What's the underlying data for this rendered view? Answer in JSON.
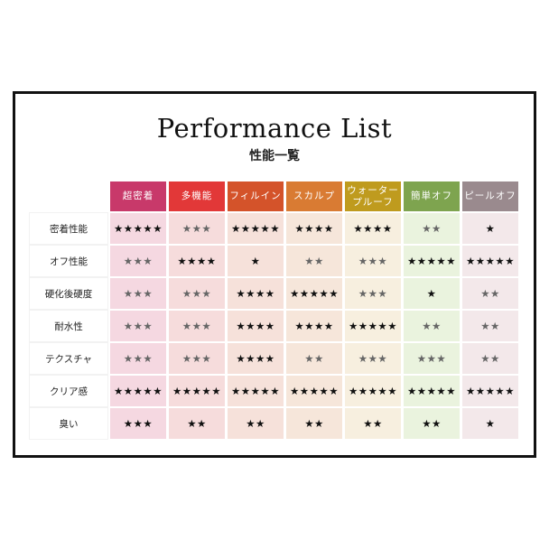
{
  "title": "Performance List",
  "subtitle": "性能一覧",
  "star_glyph": "★",
  "columns": [
    {
      "label": "超密着",
      "color": "#c8396a",
      "bg": "#f5d8e1"
    },
    {
      "label": "多機能",
      "color": "#e23838",
      "bg": "#f6dcdc"
    },
    {
      "label": "フィルイン",
      "color": "#d4532a",
      "bg": "#f6e1da"
    },
    {
      "label": "スカルプ",
      "color": "#d97b33",
      "bg": "#f6e6da"
    },
    {
      "label": "ウォーター\nプルーフ",
      "color": "#bf9b1e",
      "bg": "#f7efdf"
    },
    {
      "label": "簡単オフ",
      "color": "#7ea44f",
      "bg": "#eaf3de"
    },
    {
      "label": "ピールオフ",
      "color": "#9a8a8e",
      "bg": "#f3e8ea"
    }
  ],
  "rows": [
    {
      "label": "密着性能",
      "cells": [
        {
          "stars": 5,
          "dark": true
        },
        {
          "stars": 3,
          "dark": false
        },
        {
          "stars": 5,
          "dark": true
        },
        {
          "stars": 4,
          "dark": true
        },
        {
          "stars": 4,
          "dark": true
        },
        {
          "stars": 2,
          "dark": false
        },
        {
          "stars": 1,
          "dark": true
        }
      ]
    },
    {
      "label": "オフ性能",
      "cells": [
        {
          "stars": 3,
          "dark": false
        },
        {
          "stars": 4,
          "dark": true
        },
        {
          "stars": 1,
          "dark": true
        },
        {
          "stars": 2,
          "dark": false
        },
        {
          "stars": 3,
          "dark": false
        },
        {
          "stars": 5,
          "dark": true
        },
        {
          "stars": 5,
          "dark": true
        }
      ]
    },
    {
      "label": "硬化後硬度",
      "cells": [
        {
          "stars": 3,
          "dark": false
        },
        {
          "stars": 3,
          "dark": false
        },
        {
          "stars": 4,
          "dark": true
        },
        {
          "stars": 5,
          "dark": true
        },
        {
          "stars": 3,
          "dark": false
        },
        {
          "stars": 1,
          "dark": true
        },
        {
          "stars": 2,
          "dark": false
        }
      ]
    },
    {
      "label": "耐水性",
      "cells": [
        {
          "stars": 3,
          "dark": false
        },
        {
          "stars": 3,
          "dark": false
        },
        {
          "stars": 4,
          "dark": true
        },
        {
          "stars": 4,
          "dark": true
        },
        {
          "stars": 5,
          "dark": true
        },
        {
          "stars": 2,
          "dark": false
        },
        {
          "stars": 2,
          "dark": false
        }
      ]
    },
    {
      "label": "テクスチャ",
      "cells": [
        {
          "stars": 3,
          "dark": false
        },
        {
          "stars": 3,
          "dark": false
        },
        {
          "stars": 4,
          "dark": true
        },
        {
          "stars": 2,
          "dark": false
        },
        {
          "stars": 3,
          "dark": false
        },
        {
          "stars": 3,
          "dark": false
        },
        {
          "stars": 2,
          "dark": false
        }
      ]
    },
    {
      "label": "クリア感",
      "cells": [
        {
          "stars": 5,
          "dark": true
        },
        {
          "stars": 5,
          "dark": true
        },
        {
          "stars": 5,
          "dark": true
        },
        {
          "stars": 5,
          "dark": true
        },
        {
          "stars": 5,
          "dark": true
        },
        {
          "stars": 5,
          "dark": true
        },
        {
          "stars": 5,
          "dark": true
        }
      ]
    },
    {
      "label": "臭い",
      "cells": [
        {
          "stars": 3,
          "dark": true
        },
        {
          "stars": 2,
          "dark": true
        },
        {
          "stars": 2,
          "dark": true
        },
        {
          "stars": 2,
          "dark": true
        },
        {
          "stars": 2,
          "dark": true
        },
        {
          "stars": 2,
          "dark": true
        },
        {
          "stars": 1,
          "dark": true
        }
      ]
    }
  ]
}
